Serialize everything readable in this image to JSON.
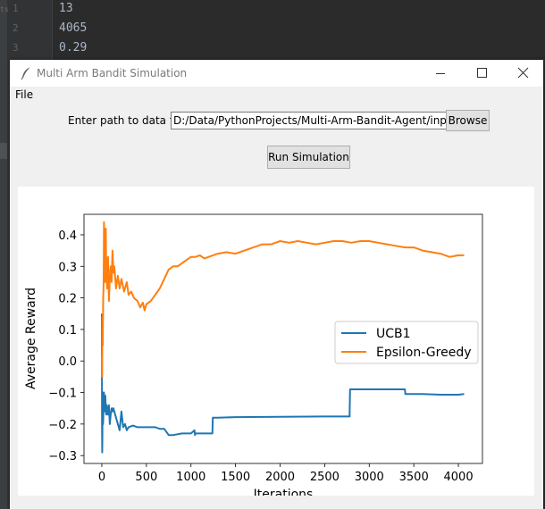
{
  "editor": {
    "side_label": "ts",
    "lines": [
      {
        "num": "1",
        "text": "13"
      },
      {
        "num": "2",
        "text": "4065"
      },
      {
        "num": "3",
        "text": "0.29"
      }
    ]
  },
  "window": {
    "title": "Multi Arm Bandit Simulation",
    "menu": [
      "File"
    ]
  },
  "form": {
    "path_label": "Enter path to data file",
    "path_value": "D:/Data/PythonProjects/Multi-Arm-Bandit-Agent/input/i",
    "browse_label": "Browse",
    "run_label": "Run Simulation"
  },
  "colors": {
    "ucb1": "#1f77b4",
    "epsilon_greedy": "#ff7f0e"
  },
  "chart_data": {
    "type": "line",
    "title": "",
    "xlabel": "Iterations",
    "ylabel": "Average Reward",
    "xlim": [
      -200,
      4270
    ],
    "ylim": [
      -0.325,
      0.465
    ],
    "xticks": [
      0,
      500,
      1000,
      1500,
      2000,
      2500,
      3000,
      3500,
      4000
    ],
    "yticks": [
      -0.3,
      -0.2,
      -0.1,
      0.0,
      0.1,
      0.2,
      0.3,
      0.4
    ],
    "ytick_labels": [
      "−0.3",
      "−0.2",
      "−0.1",
      "0.0",
      "0.1",
      "0.2",
      "0.3",
      "0.4"
    ],
    "legend": "center-right",
    "grid": false,
    "series": [
      {
        "name": "UCB1",
        "color": "#1f77b4",
        "x": [
          0,
          2,
          4,
          6,
          8,
          10,
          13,
          16,
          20,
          25,
          30,
          35,
          40,
          45,
          50,
          55,
          60,
          70,
          80,
          90,
          100,
          110,
          120,
          130,
          150,
          170,
          200,
          220,
          240,
          260,
          280,
          300,
          350,
          400,
          450,
          500,
          550,
          600,
          650,
          700,
          750,
          760,
          800,
          900,
          1000,
          1040,
          1045,
          1050,
          1100,
          1200,
          1240,
          1245,
          1300,
          1500,
          2000,
          2500,
          2780,
          2785,
          3000,
          3200,
          3400,
          3405,
          3600,
          3800,
          4000,
          4065
        ],
        "y": [
          0.15,
          -0.2,
          -0.29,
          -0.24,
          -0.12,
          -0.1,
          -0.2,
          -0.18,
          -0.13,
          -0.1,
          -0.16,
          -0.13,
          -0.11,
          -0.15,
          -0.17,
          -0.14,
          -0.15,
          -0.17,
          -0.14,
          -0.2,
          -0.17,
          -0.15,
          -0.16,
          -0.15,
          -0.17,
          -0.19,
          -0.22,
          -0.16,
          -0.21,
          -0.2,
          -0.22,
          -0.21,
          -0.205,
          -0.21,
          -0.21,
          -0.21,
          -0.21,
          -0.21,
          -0.215,
          -0.215,
          -0.235,
          -0.235,
          -0.235,
          -0.23,
          -0.23,
          -0.22,
          -0.235,
          -0.23,
          -0.23,
          -0.23,
          -0.23,
          -0.18,
          -0.18,
          -0.178,
          -0.177,
          -0.176,
          -0.176,
          -0.09,
          -0.09,
          -0.09,
          -0.09,
          -0.105,
          -0.105,
          -0.107,
          -0.107,
          -0.105
        ]
      },
      {
        "name": "Epsilon-Greedy",
        "color": "#ff7f0e",
        "x": [
          0,
          3,
          6,
          10,
          15,
          20,
          25,
          30,
          35,
          40,
          45,
          50,
          60,
          70,
          80,
          90,
          100,
          110,
          120,
          130,
          140,
          160,
          180,
          200,
          220,
          250,
          280,
          300,
          330,
          360,
          400,
          430,
          460,
          480,
          500,
          550,
          600,
          650,
          700,
          750,
          800,
          850,
          900,
          950,
          1000,
          1050,
          1100,
          1150,
          1200,
          1300,
          1400,
          1500,
          1600,
          1700,
          1800,
          1900,
          2000,
          2100,
          2200,
          2300,
          2400,
          2500,
          2600,
          2700,
          2800,
          2900,
          3000,
          3100,
          3200,
          3300,
          3400,
          3500,
          3600,
          3700,
          3800,
          3900,
          4000,
          4065
        ],
        "y": [
          0.02,
          -0.05,
          0.14,
          0.05,
          0.2,
          0.25,
          0.44,
          0.3,
          0.35,
          0.25,
          0.42,
          0.28,
          0.23,
          0.33,
          0.19,
          0.26,
          0.3,
          0.25,
          0.35,
          0.28,
          0.3,
          0.23,
          0.27,
          0.23,
          0.26,
          0.22,
          0.25,
          0.21,
          0.22,
          0.2,
          0.19,
          0.17,
          0.185,
          0.16,
          0.18,
          0.19,
          0.21,
          0.23,
          0.26,
          0.29,
          0.3,
          0.3,
          0.31,
          0.32,
          0.33,
          0.33,
          0.335,
          0.325,
          0.33,
          0.34,
          0.345,
          0.34,
          0.35,
          0.36,
          0.37,
          0.37,
          0.38,
          0.375,
          0.38,
          0.375,
          0.37,
          0.375,
          0.38,
          0.38,
          0.375,
          0.38,
          0.38,
          0.375,
          0.37,
          0.365,
          0.36,
          0.36,
          0.35,
          0.345,
          0.34,
          0.33,
          0.335,
          0.335
        ]
      }
    ]
  }
}
